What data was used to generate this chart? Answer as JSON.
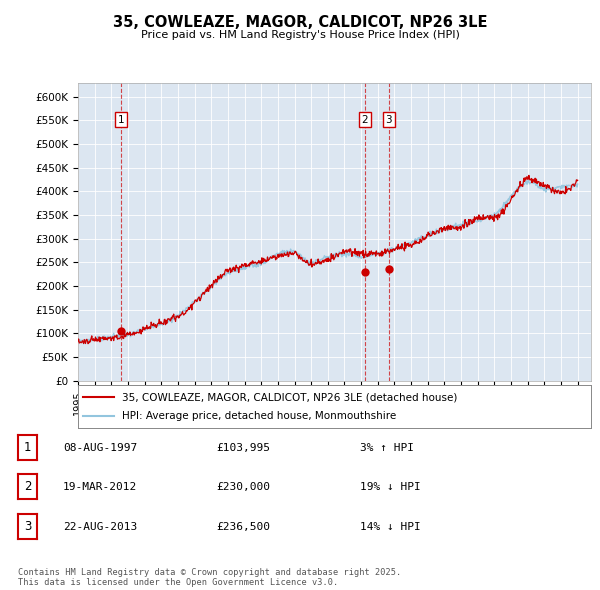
{
  "title": "35, COWLEAZE, MAGOR, CALDICOT, NP26 3LE",
  "subtitle": "Price paid vs. HM Land Registry's House Price Index (HPI)",
  "background_color": "#dce6f1",
  "plot_bg_color": "#dce6f1",
  "ylabel_ticks": [
    "£0",
    "£50K",
    "£100K",
    "£150K",
    "£200K",
    "£250K",
    "£300K",
    "£350K",
    "£400K",
    "£450K",
    "£500K",
    "£550K",
    "£600K"
  ],
  "ytick_values": [
    0,
    50000,
    100000,
    150000,
    200000,
    250000,
    300000,
    350000,
    400000,
    450000,
    500000,
    550000,
    600000
  ],
  "ylim": [
    0,
    630000
  ],
  "xlim_start": 1995.0,
  "xlim_end": 2025.8,
  "transactions": [
    {
      "label": "1",
      "date": 1997.6,
      "price": 103995
    },
    {
      "label": "2",
      "date": 2012.22,
      "price": 230000
    },
    {
      "label": "3",
      "date": 2013.65,
      "price": 236500
    }
  ],
  "legend_entries": [
    {
      "label": "35, COWLEAZE, MAGOR, CALDICOT, NP26 3LE (detached house)",
      "color": "#cc0000",
      "lw": 1.5
    },
    {
      "label": "HPI: Average price, detached house, Monmouthshire",
      "color": "#92c5de",
      "lw": 1.5
    }
  ],
  "table_rows": [
    {
      "num": "1",
      "date": "08-AUG-1997",
      "price": "£103,995",
      "hpi": "3% ↑ HPI"
    },
    {
      "num": "2",
      "date": "19-MAR-2012",
      "price": "£230,000",
      "hpi": "19% ↓ HPI"
    },
    {
      "num": "3",
      "date": "22-AUG-2013",
      "price": "£236,500",
      "hpi": "14% ↓ HPI"
    }
  ],
  "footer": "Contains HM Land Registry data © Crown copyright and database right 2025.\nThis data is licensed under the Open Government Licence v3.0.",
  "hpi_color": "#92c5de",
  "price_color": "#cc0000",
  "marker_color": "#cc0000",
  "dashed_line_color": "#cc0000",
  "hpi_curve": {
    "1995": 82000,
    "1996": 87000,
    "1997": 92000,
    "1998": 98000,
    "1999": 108000,
    "2000": 120000,
    "2001": 138000,
    "2002": 168000,
    "2003": 198000,
    "2004": 228000,
    "2005": 238000,
    "2006": 248000,
    "2007": 268000,
    "2008": 272000,
    "2009": 248000,
    "2010": 262000,
    "2011": 268000,
    "2012": 262000,
    "2013": 268000,
    "2014": 278000,
    "2015": 292000,
    "2016": 308000,
    "2017": 320000,
    "2018": 328000,
    "2019": 338000,
    "2020": 350000,
    "2021": 390000,
    "2022": 420000,
    "2023": 405000,
    "2024": 408000,
    "2025": 415000
  }
}
